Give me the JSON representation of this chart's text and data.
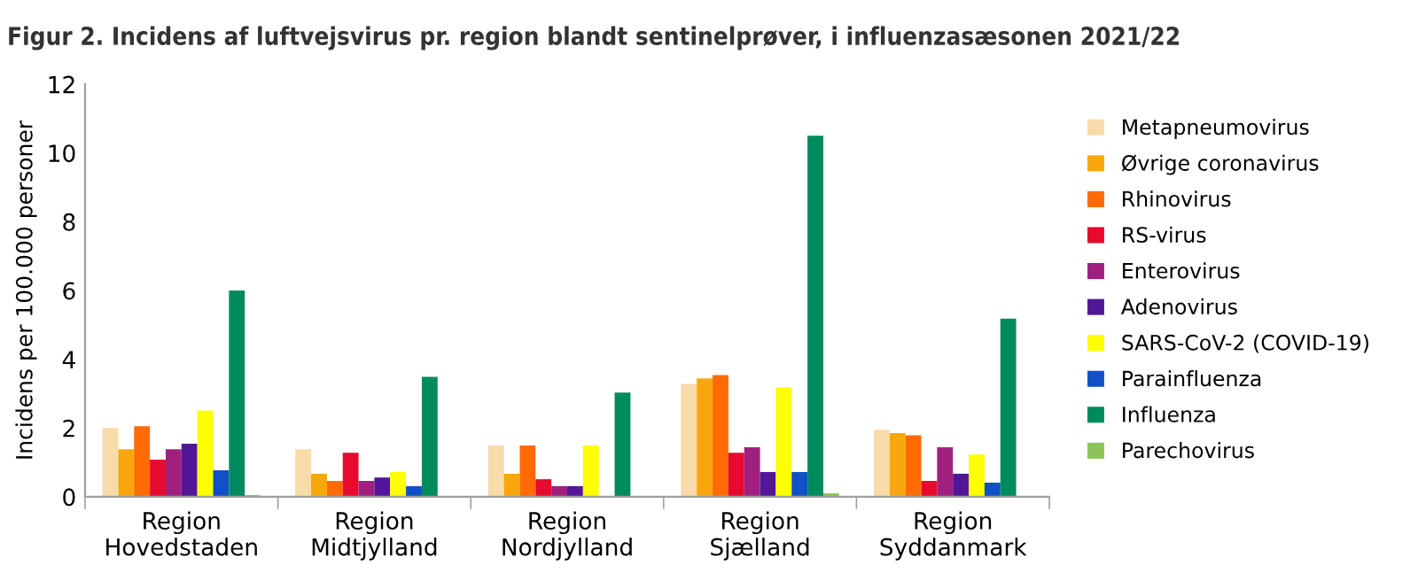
{
  "chart_data": {
    "type": "bar",
    "title": "Figur 2. Incidens af luftvejsvirus pr. region blandt sentinelprøver, i influenzasæsonen 2021/22",
    "ylabel": "Incidens per 100.000 personer",
    "categories": [
      "Region\nHovedstaden",
      "Region\nMidtjylland",
      "Region\nNordjylland",
      "Region\nSjælland",
      "Region\nSyddanmark"
    ],
    "series": [
      {
        "name": "Metapneumovirus",
        "color": "#f8dba8",
        "values": [
          2.0,
          1.38,
          1.49,
          3.28,
          1.95
        ]
      },
      {
        "name": "Øvrige coronavirus",
        "color": "#f9a70c",
        "values": [
          1.38,
          0.67,
          0.67,
          3.44,
          1.85
        ]
      },
      {
        "name": "Rhinovirus",
        "color": "#ff6a05",
        "values": [
          2.05,
          0.46,
          1.49,
          3.54,
          1.79
        ]
      },
      {
        "name": "RS-virus",
        "color": "#e8092e",
        "values": [
          1.08,
          1.28,
          0.51,
          1.28,
          0.46
        ]
      },
      {
        "name": "Enterovirus",
        "color": "#a02080",
        "values": [
          1.38,
          0.46,
          0.31,
          1.44,
          1.44
        ]
      },
      {
        "name": "Adenovirus",
        "color": "#521799",
        "values": [
          1.54,
          0.56,
          0.31,
          0.72,
          0.67
        ]
      },
      {
        "name": "SARS-CoV-2 (COVID-19)",
        "color": "#ffff00",
        "values": [
          2.51,
          0.72,
          1.49,
          3.18,
          1.23
        ]
      },
      {
        "name": "Parainfluenza",
        "color": "#1050c8",
        "values": [
          0.77,
          0.31,
          0,
          0.72,
          0.41
        ]
      },
      {
        "name": "Influenza",
        "color": "#008b5e",
        "values": [
          6.0,
          3.49,
          3.03,
          10.5,
          5.18
        ]
      },
      {
        "name": "Parechovirus",
        "color": "#8dc457",
        "values": [
          0.05,
          0,
          0,
          0.1,
          0
        ]
      }
    ],
    "ylim": [
      0,
      12
    ],
    "yticks": [
      0,
      2,
      4,
      6,
      8,
      10,
      12
    ],
    "grid": false,
    "legend": "right"
  }
}
